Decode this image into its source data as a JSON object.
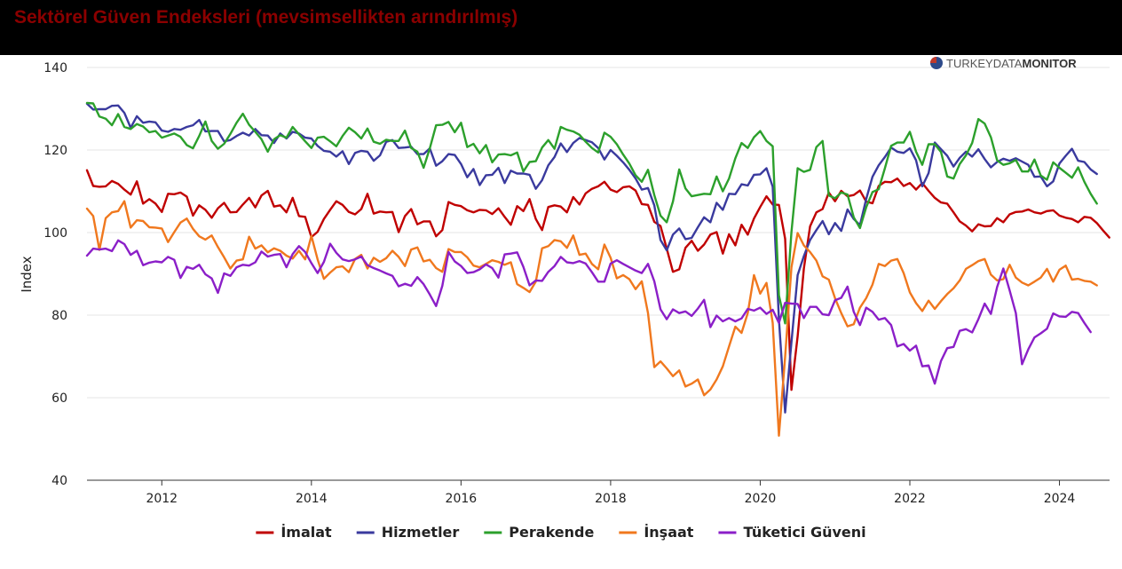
{
  "title": "Sektörel Güven Endeksleri (mevsimsellikten arındırılmış)",
  "logo": {
    "part1": "TURKEYDATA",
    "part2": "MONITOR"
  },
  "colors": {
    "title": "#8b0000",
    "imalat": "#c00000",
    "hizmetler": "#3a3a9e",
    "perakende": "#2ca02c",
    "insaat": "#f0781e",
    "tuketici": "#8b1fc8"
  },
  "chart_data": {
    "type": "line",
    "ylabel": "Index",
    "ylim": [
      40,
      140
    ],
    "yticks": [
      40,
      60,
      80,
      100,
      120,
      140
    ],
    "xlim": [
      2011.0,
      2024.67
    ],
    "xticks": [
      2012,
      2014,
      2016,
      2018,
      2020,
      2022,
      2024
    ],
    "grid": "horizontal",
    "legend_position": "bottom",
    "x_start": 2011.0,
    "x_step_months": 1,
    "series": [
      {
        "name": "İmalat",
        "color": "#c00000",
        "values": [
          115.1,
          111.3,
          111.1,
          111.2,
          112.5,
          111.8,
          110.4,
          109.2,
          112.4,
          107.0,
          108.1,
          107.0,
          105.0,
          109.4,
          109.3,
          109.7,
          108.7,
          104.1,
          106.6,
          105.5,
          103.6,
          105.9,
          107.2,
          104.9,
          105.0,
          106.8,
          108.4,
          106.1,
          109.0,
          110.1,
          106.3,
          106.6,
          104.9,
          108.4,
          104.0,
          103.8,
          98.9,
          100.2,
          103.3,
          105.5,
          107.6,
          106.7,
          105.0,
          104.4,
          105.7,
          109.4,
          104.6,
          105.1,
          104.9,
          105.0,
          100.1,
          104.0,
          105.7,
          102.0,
          102.7,
          102.7,
          99.1,
          100.6,
          107.4,
          106.7,
          106.4,
          105.4,
          104.9,
          105.5,
          105.4,
          104.5,
          105.9,
          103.8,
          101.9,
          106.4,
          105.2,
          108.1,
          103.3,
          100.6,
          106.2,
          106.6,
          106.3,
          104.9,
          108.6,
          106.8,
          109.5,
          110.6,
          111.2,
          112.3,
          110.4,
          109.8,
          111.0,
          111.2,
          110.2,
          106.9,
          106.7,
          102.6,
          101.6,
          96.1,
          90.5,
          91.1,
          96.3,
          98.0,
          95.6,
          97.1,
          99.5,
          100.1,
          94.9,
          99.6,
          96.9,
          101.9,
          99.5,
          103.4,
          106.2,
          108.8,
          106.8,
          106.7,
          98.5,
          61.9,
          74.9,
          91.3,
          101.5,
          104.9,
          105.7,
          109.7,
          107.6,
          110.1,
          108.8,
          109.1,
          110.2,
          107.5,
          107.1,
          111.3,
          112.3,
          112.2,
          113.1,
          111.3,
          112.0,
          110.4,
          112.0,
          110.1,
          108.4,
          107.3,
          107.0,
          104.9,
          102.7,
          101.7,
          100.3,
          102.0,
          101.5,
          101.6,
          103.5,
          102.5,
          104.4,
          105.0,
          105.1,
          105.6,
          104.9,
          104.6,
          105.2,
          105.4,
          104.1,
          103.6,
          103.3,
          102.5,
          103.8,
          103.6,
          102.3,
          100.5,
          98.8
        ]
      },
      {
        "name": "Hizmetler",
        "color": "#3a3a9e",
        "values": [
          131.2,
          129.8,
          129.9,
          129.9,
          130.7,
          130.8,
          129.0,
          125.4,
          128.2,
          126.6,
          126.9,
          126.7,
          124.7,
          124.4,
          125.1,
          124.9,
          125.6,
          126.0,
          127.3,
          124.5,
          124.6,
          124.6,
          122.1,
          122.4,
          123.4,
          124.2,
          123.5,
          125.1,
          123.6,
          123.5,
          121.7,
          124.0,
          122.8,
          124.4,
          124.0,
          123.0,
          122.8,
          121.0,
          119.8,
          119.6,
          118.4,
          119.7,
          116.6,
          119.3,
          119.8,
          119.6,
          117.4,
          118.7,
          122.0,
          122.4,
          120.5,
          120.6,
          120.8,
          119.0,
          119.0,
          120.4,
          116.2,
          117.3,
          119.0,
          118.8,
          116.6,
          113.4,
          115.4,
          111.5,
          113.9,
          114.0,
          115.7,
          112.0,
          115.0,
          114.3,
          114.3,
          114.0,
          110.6,
          112.7,
          116.3,
          118.3,
          121.6,
          119.5,
          121.7,
          122.9,
          122.4,
          121.9,
          120.5,
          117.7,
          120.0,
          118.6,
          117.0,
          115.2,
          113.1,
          110.4,
          110.8,
          106.6,
          98.2,
          95.7,
          99.5,
          101.0,
          98.4,
          98.7,
          101.3,
          103.7,
          102.5,
          107.2,
          105.5,
          109.4,
          109.3,
          111.7,
          111.4,
          114.0,
          114.1,
          115.6,
          111.1,
          79.0,
          56.4,
          73.4,
          89.7,
          94.3,
          98.2,
          100.6,
          102.8,
          99.6,
          102.3,
          100.4,
          105.6,
          103.3,
          101.8,
          108.1,
          113.5,
          116.3,
          118.3,
          120.6,
          119.6,
          119.3,
          120.4,
          117.5,
          111.2,
          114.4,
          121.8,
          120.2,
          118.6,
          116.0,
          118.1,
          119.6,
          118.4,
          120.2,
          117.8,
          115.8,
          117.1,
          117.9,
          117.4,
          118.0,
          117.2,
          116.4,
          113.5,
          113.6,
          111.2,
          112.4,
          116.7,
          118.6,
          120.3,
          117.4,
          117.1,
          115.3,
          114.2
        ]
      },
      {
        "name": "Perakende",
        "color": "#2ca02c",
        "values": [
          131.4,
          131.3,
          128.1,
          127.6,
          126.0,
          128.7,
          125.6,
          125.1,
          126.3,
          125.7,
          124.3,
          124.6,
          123.0,
          123.5,
          124.0,
          123.2,
          121.2,
          120.4,
          123.4,
          126.9,
          122.2,
          120.3,
          121.5,
          123.9,
          126.6,
          128.8,
          126.1,
          124.4,
          122.6,
          119.6,
          122.6,
          123.6,
          123.0,
          125.6,
          123.8,
          122.1,
          120.5,
          123.0,
          123.2,
          122.1,
          120.9,
          123.4,
          125.4,
          124.3,
          122.8,
          125.2,
          122.0,
          121.5,
          122.5,
          122.2,
          122.2,
          124.7,
          120.5,
          119.6,
          115.7,
          120.4,
          126.0,
          126.1,
          126.8,
          124.3,
          126.6,
          120.7,
          121.5,
          119.2,
          121.2,
          117.0,
          118.9,
          119.0,
          118.7,
          119.4,
          114.8,
          117.1,
          117.3,
          120.6,
          122.4,
          120.3,
          125.6,
          124.9,
          124.5,
          123.7,
          122.0,
          120.5,
          119.4,
          124.2,
          123.2,
          121.4,
          118.9,
          116.7,
          113.9,
          112.3,
          115.2,
          109.1,
          104.1,
          102.5,
          107.5,
          115.3,
          110.7,
          108.8,
          109.1,
          109.4,
          109.3,
          113.6,
          110.0,
          113.1,
          118.0,
          121.7,
          120.5,
          123.1,
          124.6,
          122.2,
          120.9,
          84.8,
          78.0,
          100.1,
          115.6,
          114.7,
          115.2,
          120.7,
          122.2,
          109.0,
          108.3,
          109.7,
          109.2,
          103.7,
          101.1,
          106.1,
          109.8,
          110.5,
          115.6,
          121.0,
          121.8,
          121.8,
          124.4,
          119.6,
          116.4,
          121.4,
          121.4,
          119.5,
          113.6,
          113.1,
          116.6,
          118.7,
          121.7,
          127.5,
          126.4,
          123.1,
          117.5,
          116.4,
          116.8,
          117.6,
          114.8,
          114.8,
          117.7,
          113.8,
          112.8,
          117.0,
          115.7,
          114.5,
          113.3,
          115.8,
          112.3,
          109.4,
          107.0
        ]
      },
      {
        "name": "İnşaat",
        "color": "#f0781e",
        "values": [
          105.8,
          104.0,
          95.8,
          103.5,
          104.9,
          105.2,
          107.6,
          101.2,
          103.0,
          102.8,
          101.3,
          101.2,
          101.0,
          97.7,
          100.1,
          102.4,
          103.4,
          100.9,
          99.1,
          98.3,
          99.3,
          96.5,
          94.0,
          91.3,
          93.2,
          93.5,
          99.0,
          96.1,
          96.9,
          95.2,
          96.2,
          95.6,
          94.4,
          93.7,
          95.6,
          93.5,
          99.2,
          93.5,
          88.8,
          90.3,
          91.6,
          91.8,
          90.4,
          93.6,
          94.6,
          91.3,
          93.9,
          92.9,
          93.8,
          95.6,
          94.1,
          91.9,
          95.9,
          96.4,
          93.0,
          93.4,
          91.4,
          90.5,
          96.0,
          95.3,
          95.3,
          94.0,
          92.0,
          91.6,
          92.4,
          93.3,
          92.9,
          92.2,
          92.8,
          87.5,
          86.6,
          85.6,
          88.1,
          96.2,
          96.7,
          98.2,
          97.9,
          96.3,
          99.3,
          94.6,
          94.9,
          92.4,
          91.1,
          97.1,
          93.9,
          88.9,
          89.7,
          88.7,
          86.3,
          88.2,
          80.5,
          67.4,
          68.8,
          67.1,
          65.2,
          66.6,
          62.7,
          63.4,
          64.4,
          60.6,
          62.0,
          64.4,
          67.6,
          72.4,
          77.2,
          75.7,
          80.5,
          89.7,
          85.2,
          87.8,
          78.1,
          50.8,
          69.9,
          91.6,
          99.9,
          96.9,
          95.3,
          93.2,
          89.4,
          88.6,
          84.1,
          80.5,
          77.3,
          77.8,
          81.8,
          84.1,
          87.4,
          92.4,
          91.9,
          93.2,
          93.6,
          90.2,
          85.5,
          82.9,
          81.0,
          83.5,
          81.5,
          83.4,
          85.1,
          86.5,
          88.4,
          91.2,
          92.1,
          93.1,
          93.6,
          89.8,
          88.4,
          88.7,
          92.2,
          89.1,
          87.9,
          87.2,
          88.1,
          89.1,
          91.2,
          88.1,
          91.0,
          92.0,
          88.6,
          88.8,
          88.3,
          88.1,
          87.2
        ]
      },
      {
        "name": "Tüketici Güveni",
        "color": "#8b1fc8",
        "values": [
          94.4,
          96.1,
          95.9,
          96.1,
          95.5,
          98.1,
          97.2,
          94.6,
          95.6,
          92.1,
          92.7,
          93.0,
          92.8,
          94.1,
          93.4,
          89.0,
          91.7,
          91.2,
          92.2,
          89.9,
          88.9,
          85.4,
          90.1,
          89.5,
          91.6,
          92.2,
          92.0,
          92.8,
          95.4,
          94.2,
          94.6,
          94.8,
          91.6,
          94.8,
          96.7,
          95.3,
          92.6,
          90.2,
          92.9,
          97.3,
          95.1,
          93.5,
          93.1,
          93.5,
          94.2,
          92.1,
          91.4,
          90.8,
          90.1,
          89.5,
          87.0,
          87.6,
          87.1,
          89.2,
          87.5,
          85.0,
          82.2,
          87.1,
          95.3,
          93.0,
          91.9,
          90.2,
          90.4,
          91.1,
          92.3,
          91.4,
          89.1,
          94.7,
          94.9,
          95.2,
          91.7,
          87.2,
          88.4,
          88.3,
          90.5,
          91.9,
          94.1,
          92.8,
          92.6,
          93.1,
          92.5,
          90.4,
          88.1,
          88.1,
          92.5,
          93.3,
          92.4,
          91.6,
          90.8,
          90.2,
          92.4,
          88.2,
          81.4,
          79.0,
          81.4,
          80.5,
          80.9,
          79.8,
          81.6,
          83.7,
          77.1,
          79.9,
          78.5,
          79.3,
          78.5,
          79.2,
          81.5,
          81.1,
          81.8,
          80.3,
          81.3,
          78.1,
          83.0,
          82.8,
          82.7,
          79.3,
          82.0,
          82.0,
          80.2,
          80.0,
          83.6,
          84.2,
          86.9,
          80.8,
          77.6,
          81.8,
          80.8,
          78.9,
          79.3,
          77.6,
          72.4,
          73.0,
          71.4,
          72.6,
          67.6,
          67.8,
          63.4,
          68.9,
          72.0,
          72.3,
          76.2,
          76.6,
          75.8,
          79.0,
          82.8,
          80.3,
          86.8,
          91.3,
          86.0,
          80.5,
          68.1,
          71.7,
          74.6,
          75.6,
          76.7,
          80.4,
          79.7,
          79.6,
          80.8,
          80.5,
          78.1,
          75.9
        ]
      }
    ]
  }
}
